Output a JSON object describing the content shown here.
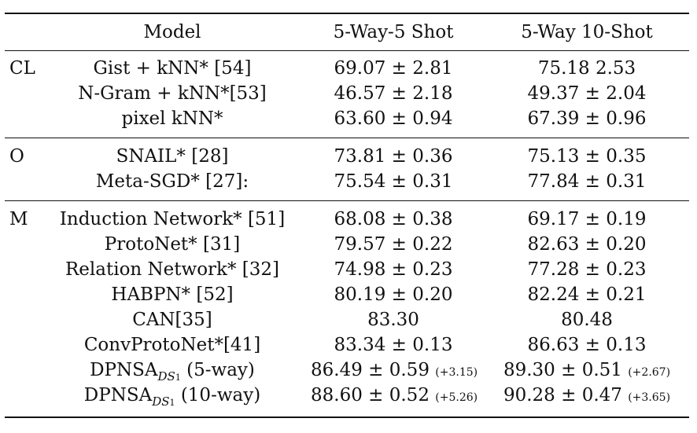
{
  "header": {
    "model": "Model",
    "col1": "5-Way-5 Shot",
    "col2": "5-Way 10-Shot"
  },
  "groups": [
    {
      "label": "CL",
      "rows": [
        {
          "model": "Gist + kNN* [54]",
          "c1": "69.07 ± 2.81",
          "c2": "75.18 2.53"
        },
        {
          "model": "N-Gram + kNN*[53]",
          "c1": "46.57 ± 2.18",
          "c2": "49.37 ± 2.04"
        },
        {
          "model": "pixel kNN*",
          "c1": "63.60 ± 0.94",
          "c2": "67.39 ± 0.96"
        }
      ]
    },
    {
      "label": "O",
      "rows": [
        {
          "model": "SNAIL* [28]",
          "c1": "73.81 ± 0.36",
          "c2": "75.13 ± 0.35"
        },
        {
          "model": "Meta-SGD* [27]:",
          "c1": "75.54 ± 0.31",
          "c2": "77.84 ± 0.31"
        }
      ]
    },
    {
      "label": "M",
      "rows": [
        {
          "model": "Induction Network* [51]",
          "c1": "68.08 ± 0.38",
          "c2": "69.17 ± 0.19"
        },
        {
          "model": "ProtoNet* [31]",
          "c1": "79.57 ± 0.22",
          "c2": "82.63 ± 0.20"
        },
        {
          "model": "Relation Network* [32]",
          "c1": "74.98 ± 0.23",
          "c2": "77.28 ± 0.23"
        },
        {
          "model": "HABPN* [52]",
          "c1": "80.19 ± 0.20",
          "c2": "82.24 ± 0.21"
        },
        {
          "model": "CAN[35]",
          "c1": "83.30",
          "c2": "80.48"
        },
        {
          "model": "ConvProtoNet*[41]",
          "c1": "83.34 ± 0.13",
          "c2": "86.63 ± 0.13"
        },
        {
          "model_base": "DPNSA",
          "model_sub": "DS",
          "model_subsub": "1",
          "model_suffix": " (5-way)",
          "c1": "86.49 ± 0.59",
          "c1_gain": "(+3.15)",
          "c2": "89.30 ± 0.51",
          "c2_gain": "(+2.67)"
        },
        {
          "model_base": "DPNSA",
          "model_sub": "DS",
          "model_subsub": "1",
          "model_suffix": " (10-way)",
          "c1": "88.60 ± 0.52",
          "c1_gain": "(+5.26)",
          "c2": "90.28 ± 0.47",
          "c2_gain": "(+3.65)"
        }
      ]
    }
  ]
}
